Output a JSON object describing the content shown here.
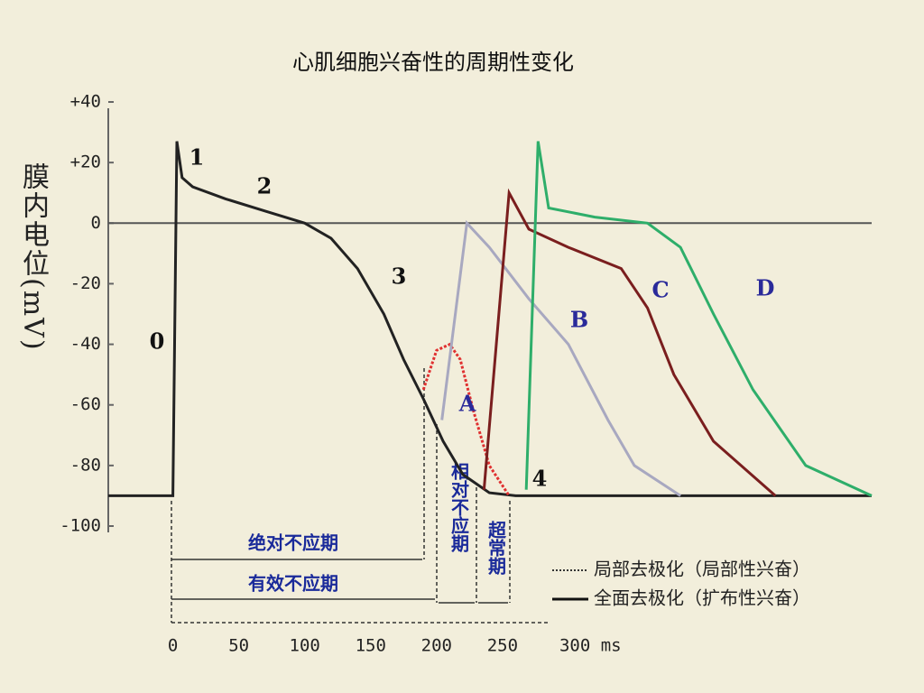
{
  "chart_data": {
    "type": "line",
    "title": "心肌细胞兴奋性的周期性变化",
    "y_label_text": "膜内电位",
    "y_label_unit": "(mV)",
    "xlim": [
      -49,
      530
    ],
    "ylim": [
      -100,
      40
    ],
    "xticks": [
      0,
      50,
      100,
      150,
      200,
      250,
      {
        "value": 300,
        "label": "300 ms"
      }
    ],
    "yticks": [
      {
        "value": 40,
        "label": "+40"
      },
      {
        "value": 20,
        "label": "+20"
      },
      0,
      -20,
      -40,
      -60,
      -80,
      -100
    ],
    "series": [
      {
        "color": "#222222",
        "x": [
          -49,
          0,
          3,
          7,
          15,
          40,
          70,
          100,
          120,
          140,
          160,
          175,
          190,
          205,
          220,
          240,
          260,
          530
        ],
        "values": [
          -90,
          -90,
          27,
          15,
          12,
          8,
          4,
          0,
          -5,
          -15,
          -30,
          -45,
          -58,
          -72,
          -83,
          -89,
          -90,
          -90
        ]
      },
      {
        "name": "A",
        "color": "#e03030",
        "dotted": true,
        "x": [
          190,
          200,
          210,
          218,
          228,
          240,
          255
        ],
        "values": [
          -55,
          -42,
          -40,
          -45,
          -62,
          -80,
          -90
        ]
      },
      {
        "name": "B",
        "color": "#a8a8c0",
        "x": [
          204,
          223,
          240,
          270,
          300,
          330,
          350,
          385
        ],
        "values": [
          -65,
          0,
          -8,
          -25,
          -40,
          -65,
          -80,
          -90
        ]
      },
      {
        "name": "C",
        "color": "#7a1e1e",
        "x": [
          236,
          255,
          270,
          300,
          340,
          360,
          380,
          410,
          457
        ],
        "values": [
          -88,
          10,
          -2,
          -8,
          -15,
          -28,
          -50,
          -72,
          -90
        ]
      },
      {
        "name": "D",
        "color": "#2eae6a",
        "x": [
          268,
          277,
          285,
          320,
          360,
          385,
          410,
          440,
          480,
          530
        ],
        "values": [
          -88,
          27,
          5,
          2,
          0,
          -8,
          -30,
          -55,
          -80,
          -90
        ]
      }
    ],
    "phase_labels": [
      "0",
      "1",
      "2",
      "3",
      "4"
    ],
    "periods": {
      "absolute": "绝对不应期",
      "effective": "有效不应期",
      "relative": "相对不应期",
      "supernormal": "超常期"
    },
    "legend": {
      "local": "局部去极化（局部性兴奋）",
      "full": "全面去极化（扩布性兴奋）"
    }
  }
}
